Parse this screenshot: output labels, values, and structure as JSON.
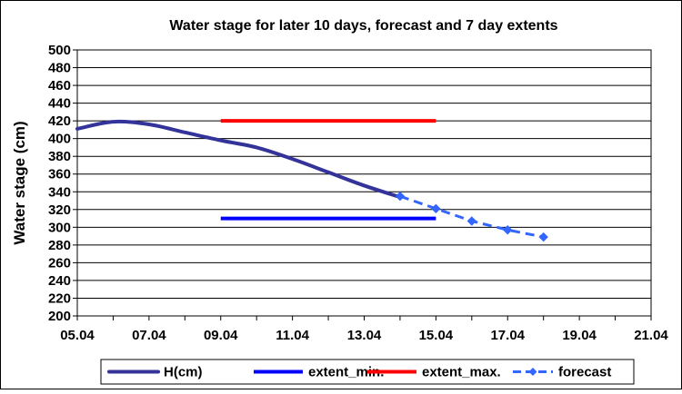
{
  "chart_data": {
    "type": "line",
    "title": "Water stage for later 10 days, forecast and 7 day extents",
    "xlabel": "",
    "ylabel": "Water stage (cm)",
    "xlim": [
      "05.04",
      "21.04"
    ],
    "ylim": [
      200,
      500
    ],
    "x_ticks": [
      "05.04",
      "07.04",
      "09.04",
      "11.04",
      "13.04",
      "15.04",
      "17.04",
      "19.04",
      "21.04"
    ],
    "y_ticks": [
      200,
      220,
      240,
      260,
      280,
      300,
      320,
      340,
      360,
      380,
      400,
      420,
      440,
      460,
      480,
      500
    ],
    "grid": "horizontal",
    "legend_position": "bottom",
    "series": [
      {
        "name": "H(cm)",
        "style": "smooth-line",
        "color": "#333399",
        "points": [
          [
            "05.04",
            411
          ],
          [
            "06.04",
            419
          ],
          [
            "07.04",
            416
          ],
          [
            "08.04",
            407
          ],
          [
            "09.04",
            398
          ],
          [
            "10.04",
            390
          ],
          [
            "11.04",
            377
          ],
          [
            "12.04",
            362
          ],
          [
            "13.04",
            347
          ],
          [
            "14.04",
            334
          ]
        ]
      },
      {
        "name": "extent_min.",
        "style": "line",
        "color": "#0000ff",
        "points": [
          [
            "09.04",
            310
          ],
          [
            "15.04",
            310
          ]
        ]
      },
      {
        "name": "extent_max.",
        "style": "line",
        "color": "#ff0000",
        "points": [
          [
            "09.04",
            420
          ],
          [
            "15.04",
            420
          ]
        ]
      },
      {
        "name": "forecast",
        "style": "dashed-markers",
        "color": "#3366ff",
        "points": [
          [
            "14.04",
            335
          ],
          [
            "15.04",
            321
          ],
          [
            "16.04",
            307
          ],
          [
            "17.04",
            297
          ],
          [
            "18.04",
            289
          ]
        ]
      }
    ]
  }
}
